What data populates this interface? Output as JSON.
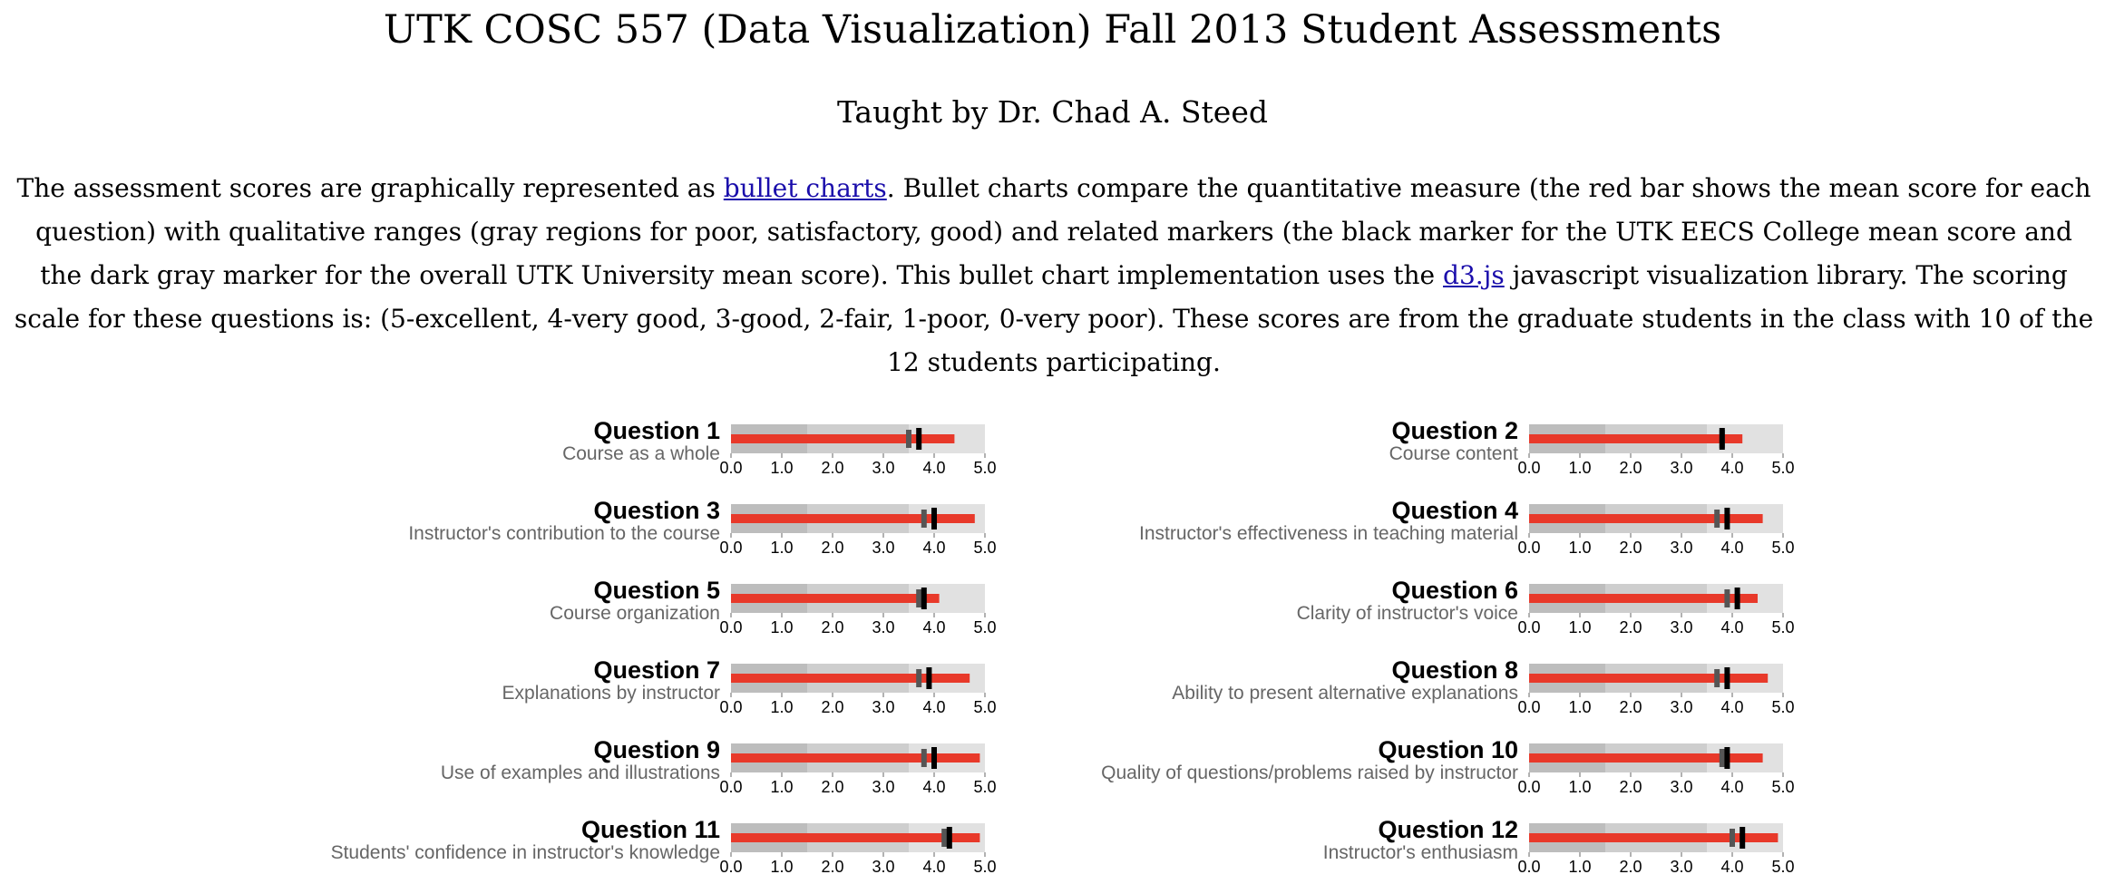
{
  "page": {
    "title": "UTK COSC 557 (Data Visualization) Fall 2013 Student Assessments",
    "subtitle": "Taught by Dr. Chad A. Steed",
    "intro": {
      "part1": "The assessment scores are graphically represented as ",
      "link1": "bullet charts",
      "part2": ". Bullet charts compare the quantitative measure (the red bar shows the mean score for each question) with qualitative ranges (gray regions for poor, satisfactory, good) and related markers (the black marker for the UTK EECS College mean score and the dark gray marker for the overall UTK University mean score). This bullet chart implementation uses the ",
      "link2": "d3.js",
      "part3": " javascript visualization library. The scoring scale for these questions is: (5-excellent, 4-very good, 3-good, 2-fair, 1-poor, 0-very poor). These scores are from the graduate students in the class with 10 of the 12 students participating."
    }
  },
  "colors": {
    "measure": "#e8392a",
    "range_poor": "#bdbdbd",
    "range_satisfactory": "#cecece",
    "range_good": "#e1e1e1",
    "college_marker": "#000000",
    "university_marker": "#555555"
  },
  "chart_data": {
    "type": "bullet",
    "scale": [
      0,
      5
    ],
    "tick_labels": [
      "0.0",
      "1.0",
      "2.0",
      "3.0",
      "4.0",
      "5.0"
    ],
    "ranges": [
      1.5,
      3.5,
      5.0
    ],
    "charts": [
      {
        "title": "Question 1",
        "subtitle": "Course as a whole",
        "measure": 4.4,
        "college": 3.7,
        "university": 3.5
      },
      {
        "title": "Question 2",
        "subtitle": "Course content",
        "measure": 4.2,
        "college": 3.8,
        "university": 3.8
      },
      {
        "title": "Question 3",
        "subtitle": "Instructor's contribution to the course",
        "measure": 4.8,
        "college": 4.0,
        "university": 3.8
      },
      {
        "title": "Question 4",
        "subtitle": "Instructor's effectiveness in teaching material",
        "measure": 4.6,
        "college": 3.9,
        "university": 3.7
      },
      {
        "title": "Question 5",
        "subtitle": "Course organization",
        "measure": 4.1,
        "college": 3.8,
        "university": 3.7
      },
      {
        "title": "Question 6",
        "subtitle": "Clarity of instructor's voice",
        "measure": 4.5,
        "college": 4.1,
        "university": 3.9
      },
      {
        "title": "Question 7",
        "subtitle": "Explanations by instructor",
        "measure": 4.7,
        "college": 3.9,
        "university": 3.7
      },
      {
        "title": "Question 8",
        "subtitle": "Ability to present alternative explanations",
        "measure": 4.7,
        "college": 3.9,
        "university": 3.7
      },
      {
        "title": "Question 9",
        "subtitle": "Use of examples and illustrations",
        "measure": 4.9,
        "college": 4.0,
        "university": 3.8
      },
      {
        "title": "Question 10",
        "subtitle": "Quality of questions/problems raised by instructor",
        "measure": 4.6,
        "college": 3.9,
        "university": 3.8
      },
      {
        "title": "Question 11",
        "subtitle": "Students' confidence in instructor's knowledge",
        "measure": 4.9,
        "college": 4.3,
        "university": 4.2
      },
      {
        "title": "Question 12",
        "subtitle": "Instructor's enthusiasm",
        "measure": 4.9,
        "college": 4.2,
        "university": 4.0
      }
    ]
  }
}
